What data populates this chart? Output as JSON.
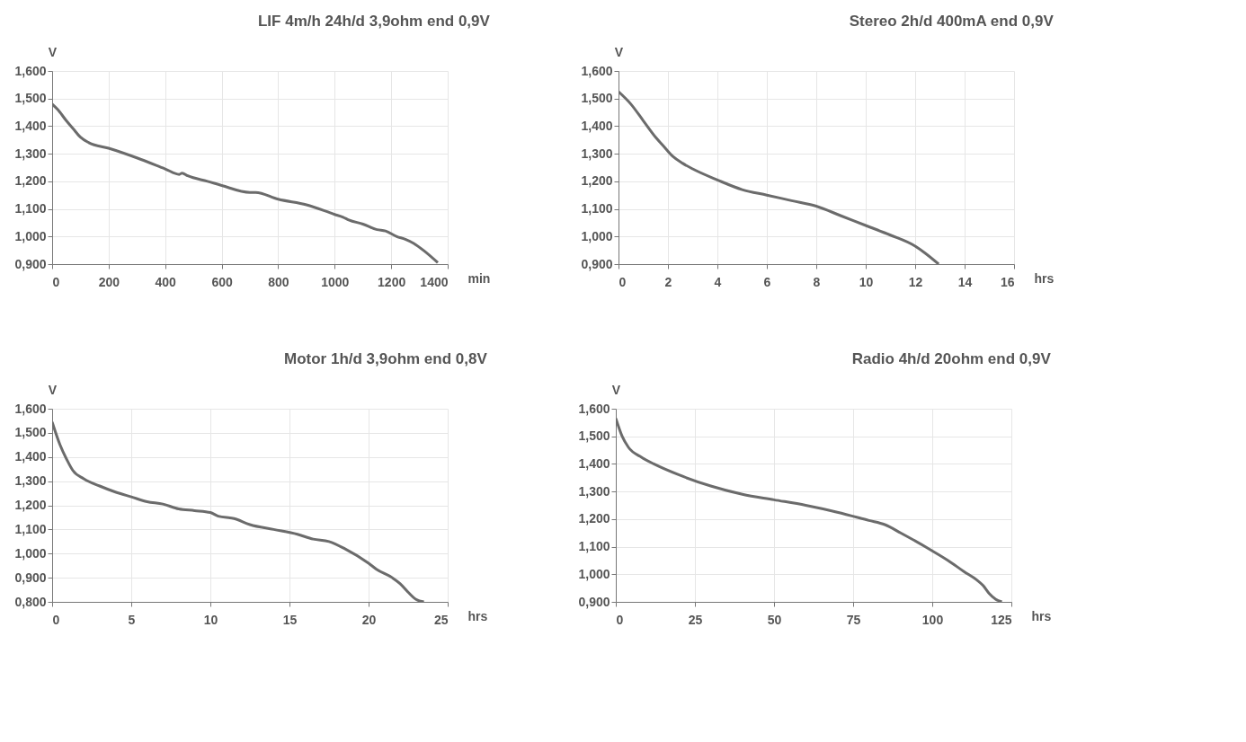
{
  "chart_data": [
    {
      "type": "line",
      "title": "LIF 4m/h 24h/d 3,9ohm end 0,9V",
      "xlabel": "min",
      "ylabel": "V",
      "grid": true,
      "legend": false,
      "x": [
        0,
        20,
        50,
        75,
        100,
        130,
        200,
        300,
        400,
        450,
        460,
        480,
        550,
        600,
        700,
        720,
        800,
        900,
        1000,
        1030,
        1050,
        1100,
        1150,
        1180,
        1220,
        1250,
        1280,
        1320,
        1365
      ],
      "series": [
        {
          "color": "#6b6b6b",
          "values": [
            1.48,
            1.46,
            1.42,
            1.39,
            1.36,
            1.34,
            1.32,
            1.285,
            1.245,
            1.225,
            1.23,
            1.22,
            1.2,
            1.185,
            1.16,
            1.16,
            1.135,
            1.115,
            1.08,
            1.07,
            1.06,
            1.045,
            1.025,
            1.02,
            1.0,
            0.99,
            0.975,
            0.945,
            0.905
          ]
        }
      ],
      "xlim": [
        0,
        1400
      ],
      "xticks": [
        0,
        200,
        400,
        600,
        800,
        1000,
        1200,
        1400
      ],
      "ylim": [
        0.9,
        1.6
      ],
      "yticks": [
        {
          "value": 0.9,
          "label": "0,900"
        },
        {
          "value": 1.0,
          "label": "1,000"
        },
        {
          "value": 1.1,
          "label": "1,100"
        },
        {
          "value": 1.2,
          "label": "1,200"
        },
        {
          "value": 1.3,
          "label": "1,300"
        },
        {
          "value": 1.4,
          "label": "1,400"
        },
        {
          "value": 1.5,
          "label": "1,500"
        },
        {
          "value": 1.6,
          "label": "1,600"
        }
      ]
    },
    {
      "type": "line",
      "title": "Stereo 2h/d 400mA end 0,9V",
      "xlabel": "hrs",
      "ylabel": "V",
      "grid": true,
      "legend": false,
      "x": [
        0,
        0.5,
        1,
        1.5,
        1.8,
        2.2,
        2.6,
        3,
        4,
        5,
        6,
        7,
        8,
        9,
        10,
        11,
        12,
        12.4,
        12.95
      ],
      "series": [
        {
          "color": "#6b6b6b",
          "values": [
            1.525,
            1.48,
            1.42,
            1.36,
            1.33,
            1.29,
            1.265,
            1.245,
            1.205,
            1.17,
            1.15,
            1.13,
            1.11,
            1.075,
            1.04,
            1.005,
            0.965,
            0.94,
            0.9
          ]
        }
      ],
      "xlim": [
        0,
        16
      ],
      "xticks": [
        0,
        2,
        4,
        6,
        8,
        10,
        12,
        14,
        16
      ],
      "ylim": [
        0.9,
        1.6
      ],
      "yticks": [
        {
          "value": 0.9,
          "label": "0,900"
        },
        {
          "value": 1.0,
          "label": "1,000"
        },
        {
          "value": 1.1,
          "label": "1,100"
        },
        {
          "value": 1.2,
          "label": "1,200"
        },
        {
          "value": 1.3,
          "label": "1,300"
        },
        {
          "value": 1.4,
          "label": "1,400"
        },
        {
          "value": 1.5,
          "label": "1,500"
        },
        {
          "value": 1.6,
          "label": "1,600"
        }
      ]
    },
    {
      "type": "line",
      "title": "Motor 1h/d 3,9ohm end 0,8V",
      "xlabel": "hrs",
      "ylabel": "V",
      "grid": true,
      "legend": false,
      "x": [
        0,
        0.5,
        1,
        1.3,
        2,
        3,
        4,
        5,
        6,
        7,
        8,
        9,
        10,
        10.5,
        11.5,
        12.5,
        14,
        15.5,
        16.5,
        17.5,
        18.5,
        20,
        20.5,
        21.5,
        22,
        22.5,
        23,
        23.5
      ],
      "series": [
        {
          "color": "#6b6b6b",
          "values": [
            1.545,
            1.45,
            1.38,
            1.345,
            1.31,
            1.28,
            1.255,
            1.235,
            1.215,
            1.205,
            1.185,
            1.178,
            1.17,
            1.155,
            1.145,
            1.12,
            1.1,
            1.08,
            1.06,
            1.05,
            1.02,
            0.96,
            0.935,
            0.9,
            0.875,
            0.84,
            0.81,
            0.8
          ]
        }
      ],
      "xlim": [
        0,
        25
      ],
      "xticks": [
        0,
        5,
        10,
        15,
        20,
        25
      ],
      "ylim": [
        0.8,
        1.6
      ],
      "yticks": [
        {
          "value": 0.8,
          "label": "0,800"
        },
        {
          "value": 0.9,
          "label": "0,900"
        },
        {
          "value": 1.0,
          "label": "1,000"
        },
        {
          "value": 1.1,
          "label": "1,100"
        },
        {
          "value": 1.2,
          "label": "1,200"
        },
        {
          "value": 1.3,
          "label": "1,300"
        },
        {
          "value": 1.4,
          "label": "1,400"
        },
        {
          "value": 1.5,
          "label": "1,500"
        },
        {
          "value": 1.6,
          "label": "1,600"
        }
      ]
    },
    {
      "type": "line",
      "title": "Radio 4h/d 20ohm end 0,9V",
      "xlabel": "hrs",
      "ylabel": "V",
      "grid": true,
      "legend": false,
      "x": [
        0,
        2,
        4,
        8,
        12,
        20,
        30,
        40,
        50,
        60,
        70,
        80,
        85,
        90,
        100,
        105,
        110,
        114,
        116,
        118,
        120,
        122
      ],
      "series": [
        {
          "color": "#6b6b6b",
          "values": [
            1.565,
            1.5,
            1.46,
            1.425,
            1.4,
            1.36,
            1.32,
            1.29,
            1.27,
            1.25,
            1.225,
            1.195,
            1.18,
            1.15,
            1.085,
            1.05,
            1.01,
            0.98,
            0.96,
            0.93,
            0.91,
            0.9
          ]
        }
      ],
      "xlim": [
        0,
        125
      ],
      "xticks": [
        0,
        25,
        50,
        75,
        100,
        125
      ],
      "ylim": [
        0.9,
        1.6
      ],
      "yticks": [
        {
          "value": 0.9,
          "label": "0,900"
        },
        {
          "value": 1.0,
          "label": "1,000"
        },
        {
          "value": 1.1,
          "label": "1,100"
        },
        {
          "value": 1.2,
          "label": "1,200"
        },
        {
          "value": 1.3,
          "label": "1,300"
        },
        {
          "value": 1.4,
          "label": "1,400"
        },
        {
          "value": 1.5,
          "label": "1,500"
        },
        {
          "value": 1.6,
          "label": "1,600"
        }
      ]
    }
  ]
}
